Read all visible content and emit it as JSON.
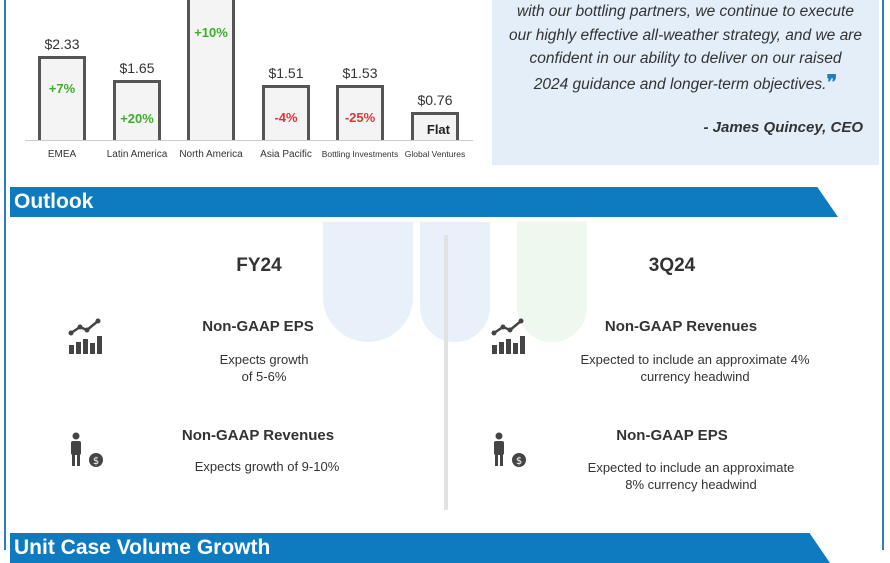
{
  "chart": {
    "bars": [
      {
        "category": "EMEA",
        "value": "$2.33",
        "change": "+7%",
        "trend": "up",
        "height": 84
      },
      {
        "category": "Latin America",
        "value": "$1.65",
        "change": "+20%",
        "trend": "up",
        "height": 60
      },
      {
        "category": "North America",
        "value": "",
        "change": "+10%",
        "trend": "up",
        "height": 150
      },
      {
        "category": "Asia Pacific",
        "value": "$1.51",
        "change": "-4%",
        "trend": "down",
        "height": 55
      },
      {
        "category": "Bottling Investments",
        "value": "$1.53",
        "change": "-25%",
        "trend": "down",
        "height": 55
      },
      {
        "category": "Global Ventures",
        "value": "$0.76",
        "change": "Flat",
        "trend": "flat",
        "height": 28
      }
    ],
    "colors": {
      "up": "#3fae2a",
      "down": "#e0353d",
      "flat": "#222222"
    }
  },
  "quote": {
    "lines": [
      "with our bottling partners, we continue to execute",
      "our highly effective all-weather strategy, and we are",
      "confident in our ability to deliver on our raised",
      "2024 guidance and longer-term objectives."
    ],
    "author": "- James Quincey, CEO"
  },
  "outlook": {
    "banner": "Outlook",
    "fy": {
      "title": "FY24",
      "items": [
        {
          "title": "Non-GAAP EPS",
          "desc1": "Expects growth",
          "desc2": "of 5-6%"
        },
        {
          "title": "Non-GAAP Revenues",
          "desc1": "Expects growth of 9-10%",
          "desc2": ""
        }
      ]
    },
    "q": {
      "title": "3Q24",
      "items": [
        {
          "title": "Non-GAAP Revenues",
          "desc1": "Expected to include an approximate 4%",
          "desc2": "currency headwind"
        },
        {
          "title": "Non-GAAP EPS",
          "desc1": "Expected to include an approximate",
          "desc2": "8% currency headwind"
        }
      ]
    }
  },
  "next_banner": "Unit Case Volume Growth",
  "accent": "#0e7bc0"
}
